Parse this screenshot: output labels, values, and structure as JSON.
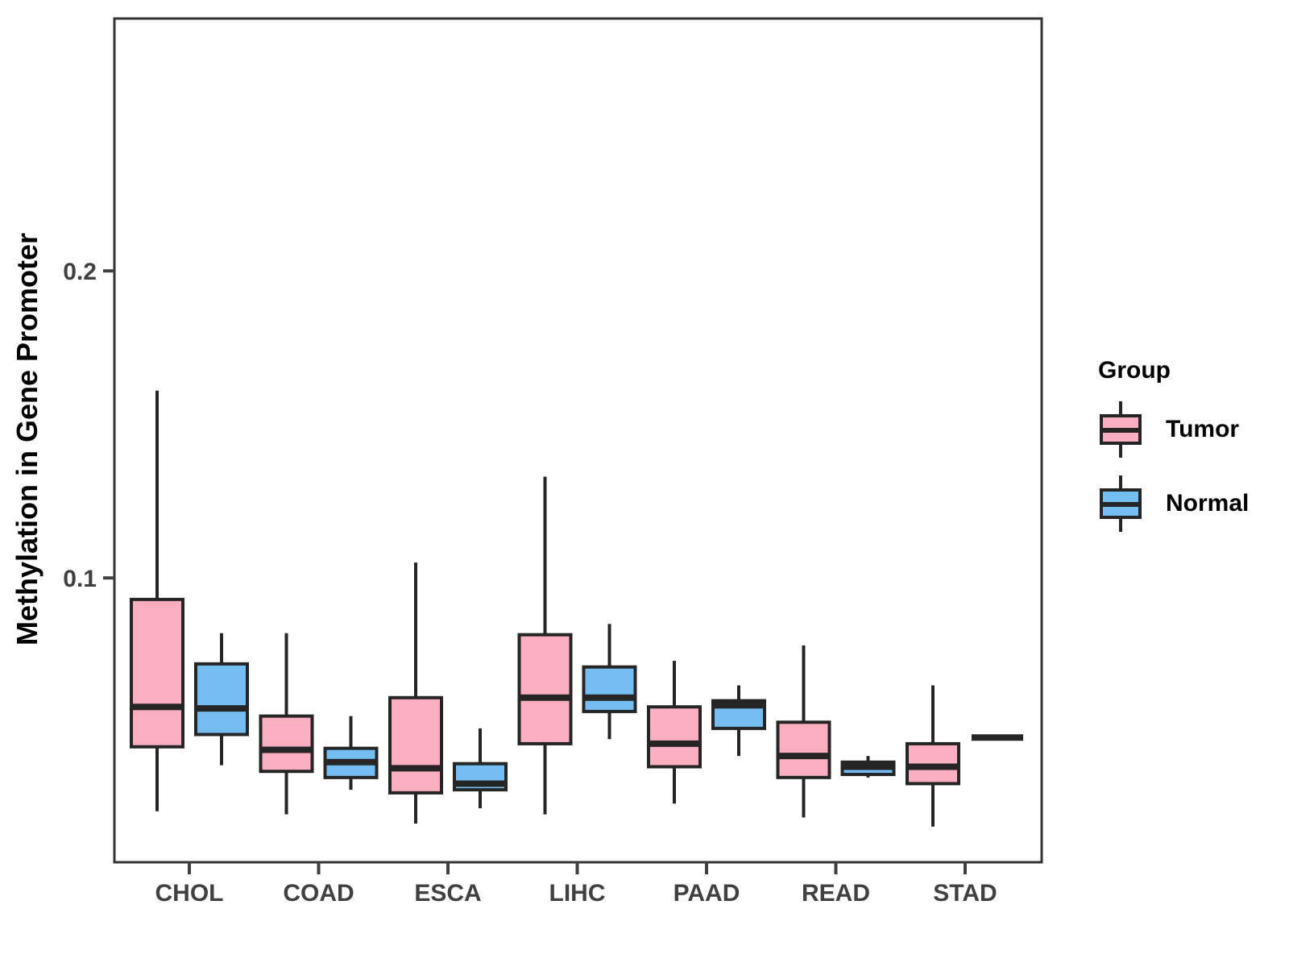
{
  "figure": {
    "y_axis": {
      "title": "Methylation in Gene Promoter",
      "tick_labels": [
        "0.2",
        "0.1"
      ]
    },
    "x_axis": {
      "tick_labels": [
        "CHOL",
        "COAD",
        "ESCA",
        "LIHC",
        "PAAD",
        "READ",
        "STAD"
      ]
    },
    "legend": {
      "title": "Group",
      "items": [
        {
          "label": "Tumor"
        },
        {
          "label": "Normal"
        }
      ]
    }
  },
  "chart_data": {
    "type": "boxplot",
    "title": "",
    "xlabel": "",
    "ylabel": "Methylation in Gene Promoter",
    "categories": [
      "CHOL",
      "COAD",
      "ESCA",
      "LIHC",
      "PAAD",
      "READ",
      "STAD"
    ],
    "yticks": [
      {
        "label": "0.2",
        "value": 0.2
      },
      {
        "label": "0.1",
        "value": 0.1
      }
    ],
    "ylim": [
      0.0074,
      0.2822
    ],
    "legend_title": "Group",
    "legend_position": "right",
    "grid": false,
    "series": [
      {
        "name": "Tumor",
        "fill": "#FAAFC0",
        "boxes": [
          {
            "category": "CHOL",
            "whisker_low": 0.024,
            "q1": 0.045,
            "median": 0.058,
            "q3": 0.093,
            "whisker_high": 0.161
          },
          {
            "category": "COAD",
            "whisker_low": 0.023,
            "q1": 0.037,
            "median": 0.044,
            "q3": 0.055,
            "whisker_high": 0.082
          },
          {
            "category": "ESCA",
            "whisker_low": 0.02,
            "q1": 0.03,
            "median": 0.038,
            "q3": 0.061,
            "whisker_high": 0.105
          },
          {
            "category": "LIHC",
            "whisker_low": 0.023,
            "q1": 0.046,
            "median": 0.061,
            "q3": 0.0815,
            "whisker_high": 0.133
          },
          {
            "category": "PAAD",
            "whisker_low": 0.0265,
            "q1": 0.0385,
            "median": 0.046,
            "q3": 0.058,
            "whisker_high": 0.073
          },
          {
            "category": "READ",
            "whisker_low": 0.022,
            "q1": 0.035,
            "median": 0.042,
            "q3": 0.053,
            "whisker_high": 0.078
          },
          {
            "category": "STAD",
            "whisker_low": 0.019,
            "q1": 0.033,
            "median": 0.0385,
            "q3": 0.046,
            "whisker_high": 0.065
          }
        ]
      },
      {
        "name": "Normal",
        "fill": "#74BEF2",
        "boxes": [
          {
            "category": "CHOL",
            "whisker_low": 0.039,
            "q1": 0.049,
            "median": 0.0575,
            "q3": 0.072,
            "whisker_high": 0.082
          },
          {
            "category": "COAD",
            "whisker_low": 0.031,
            "q1": 0.035,
            "median": 0.04,
            "q3": 0.0445,
            "whisker_high": 0.055
          },
          {
            "category": "ESCA",
            "whisker_low": 0.025,
            "q1": 0.031,
            "median": 0.033,
            "q3": 0.0395,
            "whisker_high": 0.051
          },
          {
            "category": "LIHC",
            "whisker_low": 0.0475,
            "q1": 0.0565,
            "median": 0.061,
            "q3": 0.071,
            "whisker_high": 0.085
          },
          {
            "category": "PAAD",
            "whisker_low": 0.042,
            "q1": 0.051,
            "median": 0.0585,
            "q3": 0.06,
            "whisker_high": 0.065
          },
          {
            "category": "READ",
            "whisker_low": 0.035,
            "q1": 0.036,
            "median": 0.0385,
            "q3": 0.04,
            "whisker_high": 0.042
          },
          {
            "category": "STAD",
            "whisker_low": 0.048,
            "q1": 0.048,
            "median": 0.048,
            "q3": 0.048,
            "whisker_high": 0.048
          }
        ]
      }
    ]
  },
  "colors": {
    "tumor_fill": "#FAAFC0",
    "normal_fill": "#74BEF2",
    "line": "#252525",
    "panel_border": "#333333",
    "axis_text": "#404040",
    "background": "#FFFFFF"
  }
}
